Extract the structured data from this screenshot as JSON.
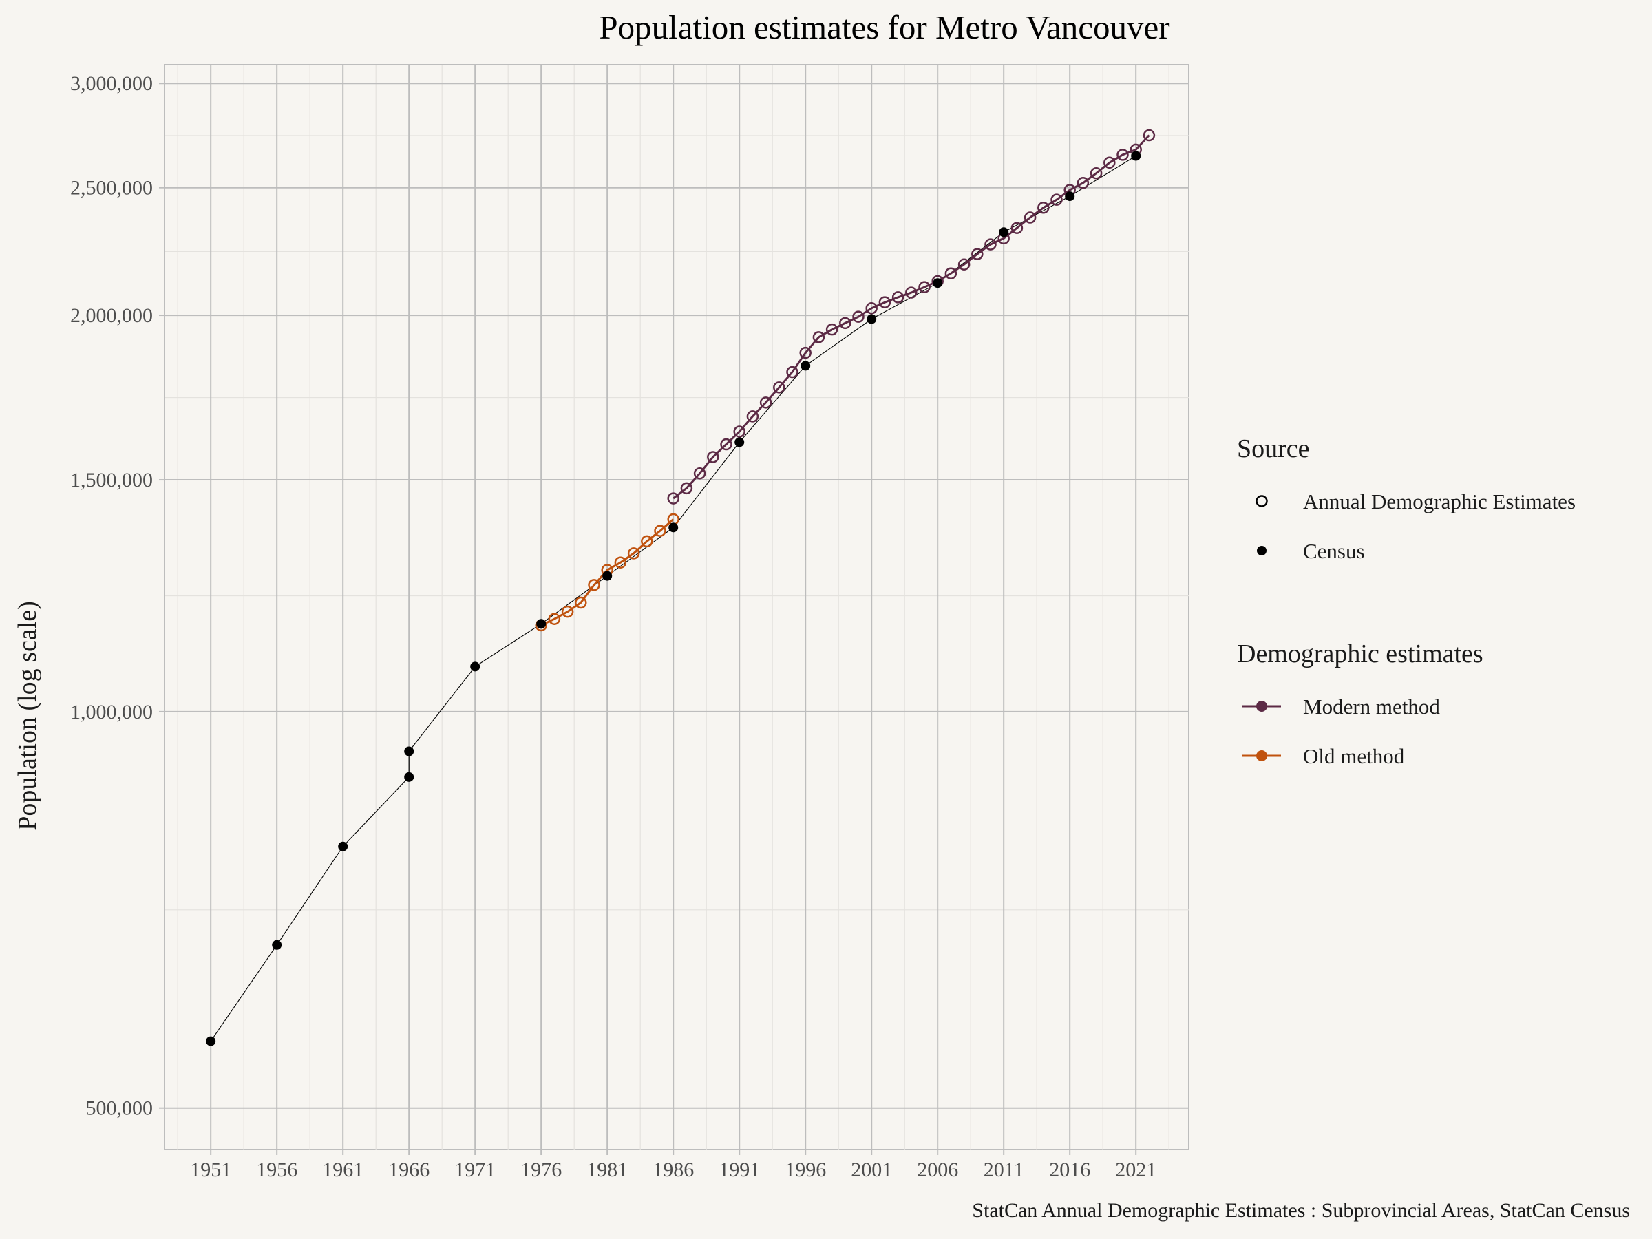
{
  "chart_data": {
    "type": "line",
    "title": "Population estimates for Metro Vancouver",
    "xlabel": "",
    "ylabel": "Population (log scale)",
    "y_scale": "log",
    "xlim": [
      1947.5,
      2025
    ],
    "ylim": [
      465000,
      3100000
    ],
    "x_ticks": [
      1951,
      1956,
      1961,
      1966,
      1971,
      1976,
      1981,
      1986,
      1991,
      1996,
      2001,
      2006,
      2011,
      2016,
      2021
    ],
    "y_ticks": [
      500000,
      1000000,
      1500000,
      2000000,
      2500000,
      3000000
    ],
    "y_tick_labels": [
      "500,000",
      "1,000,000",
      "1,500,000",
      "2,000,000",
      "2,500,000",
      "3,000,000"
    ],
    "grid": true,
    "legend_position": "right",
    "legend": {
      "source_title": "Source",
      "source_items": [
        {
          "label": "Annual Demographic Estimates",
          "marker": "open-circle"
        },
        {
          "label": "Census",
          "marker": "filled-circle"
        }
      ],
      "method_title": "Demographic estimates",
      "method_items": [
        {
          "label": "Modern method",
          "color": "#5C2A45"
        },
        {
          "label": "Old method",
          "color": "#C0520E"
        }
      ]
    },
    "colors": {
      "modern": "#5C2A45",
      "old": "#C0520E",
      "census": "#000000",
      "background": "#F7F5F1",
      "grid_major": "#BDBDBD",
      "grid_minor": "#E4E2DE"
    },
    "series": [
      {
        "name": "Census",
        "style": "filled-points-thin-line",
        "x": [
          1951,
          1956,
          1961,
          1966,
          1966,
          1971,
          1976,
          1981,
          1986,
          1991,
          1996,
          2001,
          2006,
          2011,
          2016,
          2021
        ],
        "y": [
          562000,
          665000,
          790000,
          892000,
          933000,
          1082000,
          1166000,
          1268000,
          1380000,
          1602000,
          1831000,
          1987000,
          2116000,
          2313000,
          2463000,
          2643000
        ]
      },
      {
        "name": "Old method",
        "style": "open-points-line",
        "x": [
          1976,
          1977,
          1978,
          1979,
          1980,
          1981,
          1982,
          1983,
          1984,
          1985,
          1986
        ],
        "y": [
          1163000,
          1176000,
          1191000,
          1210000,
          1248000,
          1281000,
          1298000,
          1319000,
          1347000,
          1372000,
          1400000
        ]
      },
      {
        "name": "Modern method",
        "style": "open-points-line",
        "x": [
          1986,
          1987,
          1988,
          1989,
          1990,
          1991,
          1992,
          1993,
          1994,
          1995,
          1996,
          1997,
          1998,
          1999,
          2000,
          2001,
          2002,
          2003,
          2004,
          2005,
          2006,
          2007,
          2008,
          2009,
          2010,
          2011,
          2012,
          2013,
          2014,
          2015,
          2016,
          2017,
          2018,
          2019,
          2020,
          2021,
          2022
        ],
        "y": [
          1452000,
          1478000,
          1517000,
          1561000,
          1596000,
          1632000,
          1676000,
          1717000,
          1763000,
          1811000,
          1873000,
          1925000,
          1951000,
          1973000,
          1995000,
          2025000,
          2046000,
          2064000,
          2081000,
          2101000,
          2123000,
          2152000,
          2186000,
          2226000,
          2264000,
          2288000,
          2330000,
          2373000,
          2414000,
          2448000,
          2490000,
          2521000,
          2564000,
          2612000,
          2648000,
          2672000,
          2740000
        ]
      }
    ],
    "caption": "StatCan Annual Demographic Estimates : Subprovincial Areas, StatCan Census"
  }
}
